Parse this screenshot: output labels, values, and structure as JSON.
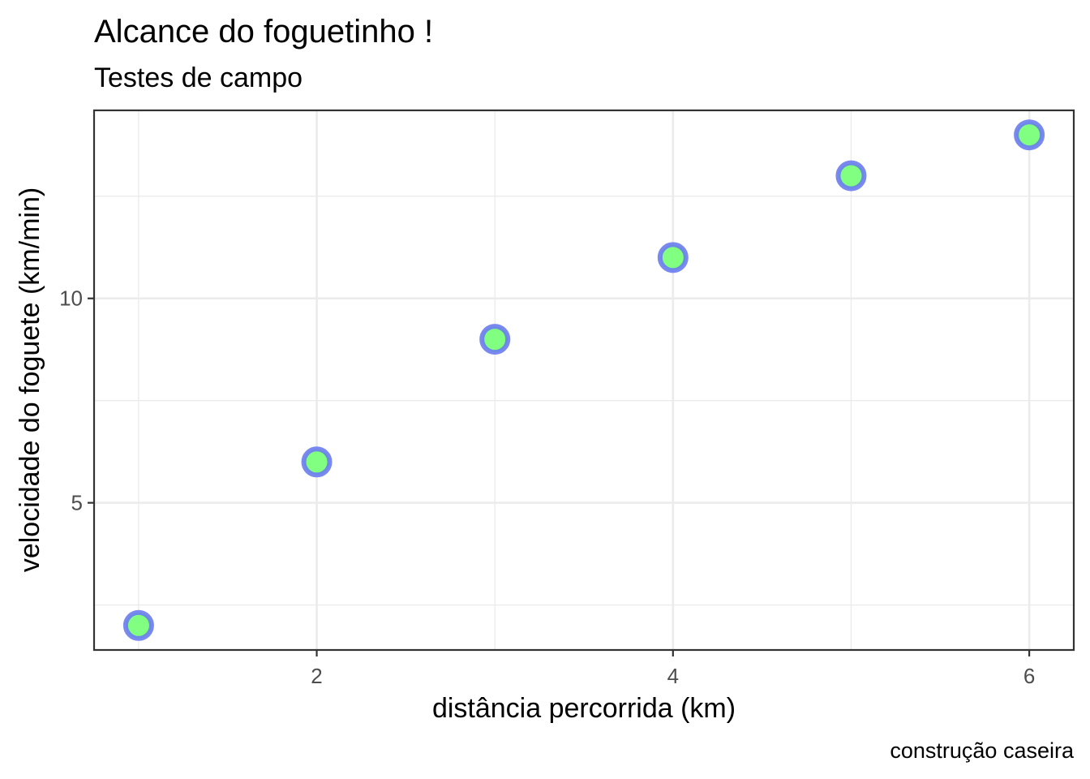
{
  "chart_data": {
    "type": "scatter",
    "title": "Alcance do foguetinho !",
    "subtitle": "Testes de campo",
    "xlabel": "distância percorrida (km)",
    "ylabel": "velocidade do foguete (km/min)",
    "caption": "construção caseira",
    "x": [
      1,
      2,
      3,
      4,
      5,
      6
    ],
    "y": [
      2,
      6,
      9,
      11,
      13,
      14
    ],
    "xlim": [
      0.75,
      6.25
    ],
    "ylim": [
      1.4,
      14.6
    ],
    "x_ticks": [
      2,
      4,
      6
    ],
    "x_tick_labels": [
      "2",
      "4",
      "6"
    ],
    "x_minor_ticks": [
      1,
      3,
      5
    ],
    "y_ticks": [
      5,
      10
    ],
    "y_tick_labels": [
      "5",
      "10"
    ],
    "y_minor_ticks": [
      2.5,
      7.5,
      12.5
    ],
    "grid": true,
    "legend": "none",
    "point_fill_color": "#80ff80",
    "point_stroke_color": "#6b7cf0"
  }
}
